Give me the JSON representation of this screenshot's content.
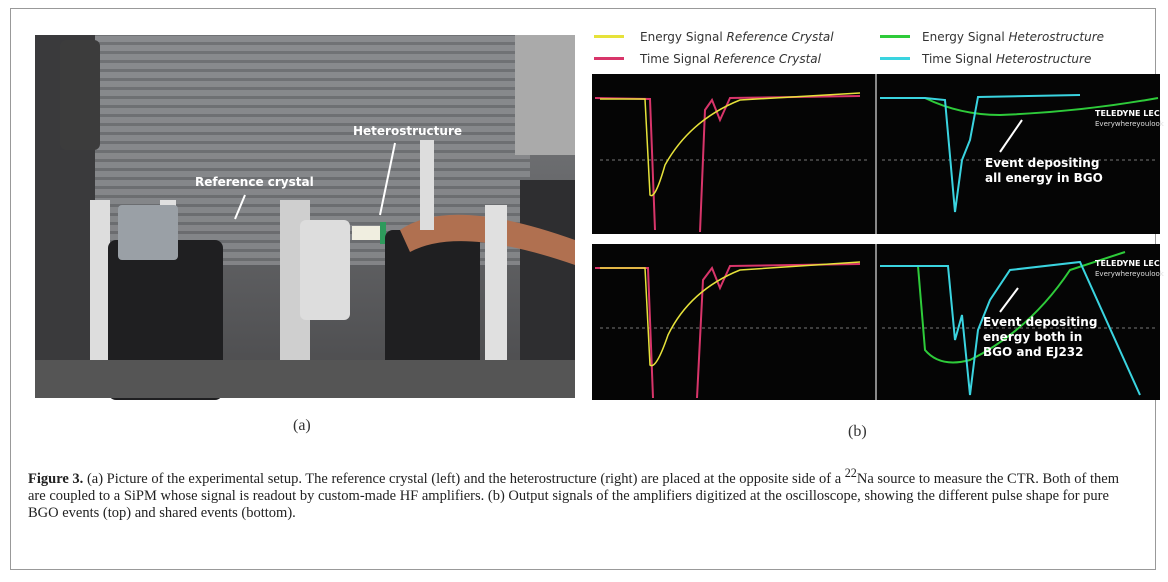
{
  "panel_a": {
    "labels": [
      "Reference crystal",
      "Heterostructure"
    ],
    "caption": "(a)"
  },
  "panel_b": {
    "legend": [
      {
        "text": "Energy Signal ",
        "italic": "Reference Crystal"
      },
      {
        "text": "Energy Signal ",
        "italic": "Heterostructure"
      },
      {
        "text": "Time Signal ",
        "italic": "Reference Crystal"
      },
      {
        "text": "Time Signal ",
        "italic": "Heterostructure"
      }
    ],
    "brand": "TELEDYNE LECROY",
    "slogan": "Everywhereyoulook",
    "annotations": [
      [
        "Event depositing",
        "all energy in BGO"
      ],
      [
        "Event depositing",
        "energy both in",
        "BGO and EJ232"
      ]
    ],
    "caption": "(b)"
  },
  "caption": {
    "label": "Figure 3.",
    "text_1": " (a) Picture of the experimental setup. The reference crystal (left) and the heterostructure (right) are placed at the opposite side of a ",
    "sup": "22",
    "text_2": "Na source to measure the CTR. Both of them are coupled to a SiPM whose signal is readout by custom-made HF amplifiers. (b) Output signals of the amplifiers digitized at the oscilloscope, showing the different pulse shape for pure BGO events (top) and shared events (bottom)."
  }
}
